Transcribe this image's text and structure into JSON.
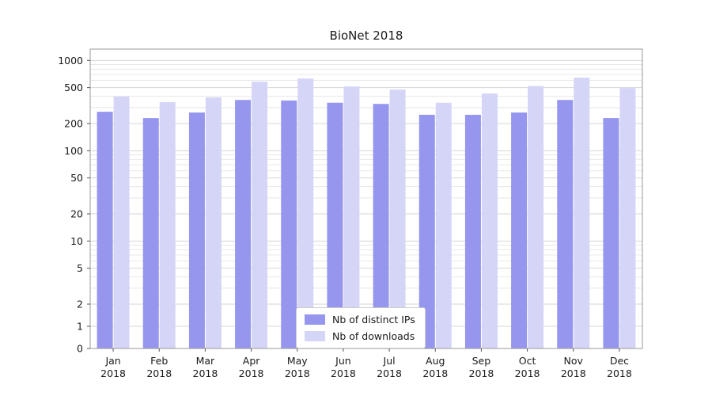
{
  "chart_data": {
    "type": "bar",
    "title": "BioNet 2018",
    "categories": [
      "Jan 2018",
      "Feb 2018",
      "Mar 2018",
      "Apr 2018",
      "May 2018",
      "Jun 2018",
      "Jul 2018",
      "Aug 2018",
      "Sep 2018",
      "Oct 2018",
      "Nov 2018",
      "Dec 2018"
    ],
    "series": [
      {
        "name": "Nb of distinct IPs",
        "color": "#9696ee",
        "values": [
          270,
          230,
          265,
          365,
          360,
          340,
          330,
          250,
          250,
          265,
          365,
          230
        ]
      },
      {
        "name": "Nb of downloads",
        "color": "#d5d5f7",
        "values": [
          400,
          345,
          390,
          580,
          630,
          515,
          475,
          340,
          430,
          520,
          645,
          495
        ]
      }
    ],
    "yscale": "symlog",
    "yticks": [
      0,
      1,
      2,
      5,
      10,
      20,
      50,
      100,
      200,
      500,
      1000
    ],
    "ylim": [
      0,
      1336
    ],
    "grid": true,
    "legend_position": "lower center"
  },
  "colors": {
    "grid_major": "#d6d6d6",
    "grid_minor": "#e8e8e8",
    "spine": "#9a9a9a",
    "tick": "#555555",
    "text": "#1a1a1a"
  }
}
